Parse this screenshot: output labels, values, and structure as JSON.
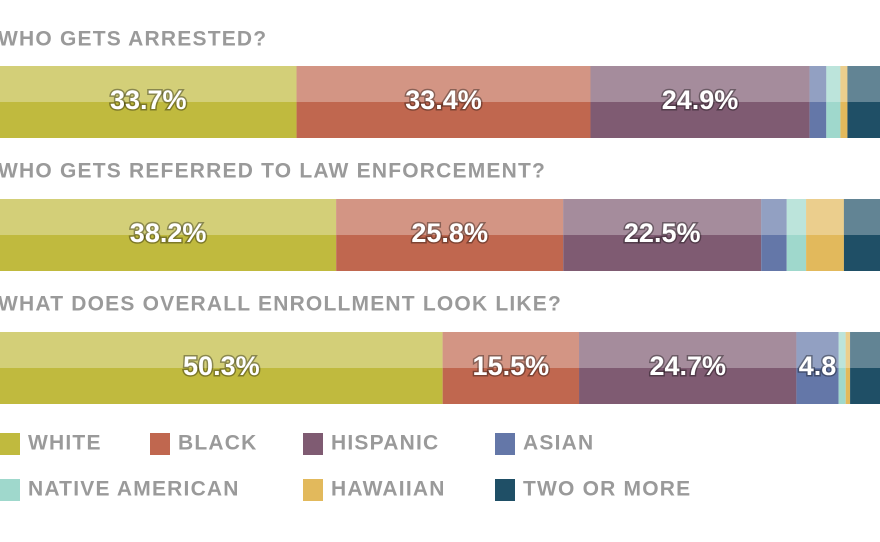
{
  "chart_data": {
    "type": "stacked-bar",
    "categories": [
      "WHO GETS ARRESTED?",
      "WHO GETS REFERRED TO LAW ENFORCEMENT?",
      "WHAT DOES OVERALL ENROLLMENT LOOK LIKE?"
    ],
    "xlim": [
      0,
      100
    ],
    "series": [
      {
        "name": "WHITE",
        "color": "#c0ba3e",
        "values": [
          33.7,
          38.2,
          50.3
        ],
        "value_labels": [
          "33.7%",
          "38.2%",
          "50.3%"
        ]
      },
      {
        "name": "BLACK",
        "color": "#c0674f",
        "values": [
          33.4,
          25.8,
          15.5
        ],
        "value_labels": [
          "33.4%",
          "25.8%",
          "15.5%"
        ]
      },
      {
        "name": "HISPANIC",
        "color": "#7f5b72",
        "values": [
          24.9,
          22.5,
          24.7
        ],
        "value_labels": [
          "24.9%",
          "22.5%",
          "24.7%"
        ]
      },
      {
        "name": "ASIAN",
        "color": "#6477a8",
        "values": [
          1.9,
          2.9,
          4.8
        ],
        "value_labels": [
          null,
          null,
          "4.8"
        ]
      },
      {
        "name": "NATIVE AMERICAN",
        "color": "#9fd8cc",
        "values": [
          1.6,
          2.2,
          0.8
        ],
        "value_labels": [
          null,
          null,
          null
        ]
      },
      {
        "name": "HAWAIIAN",
        "color": "#e2b95c",
        "values": [
          0.8,
          4.3,
          0.5
        ],
        "value_labels": [
          null,
          null,
          null
        ]
      },
      {
        "name": "TWO OR MORE",
        "color": "#1f4f66",
        "values": [
          3.7,
          4.1,
          3.4
        ],
        "value_labels": [
          null,
          null,
          null
        ]
      }
    ]
  }
}
